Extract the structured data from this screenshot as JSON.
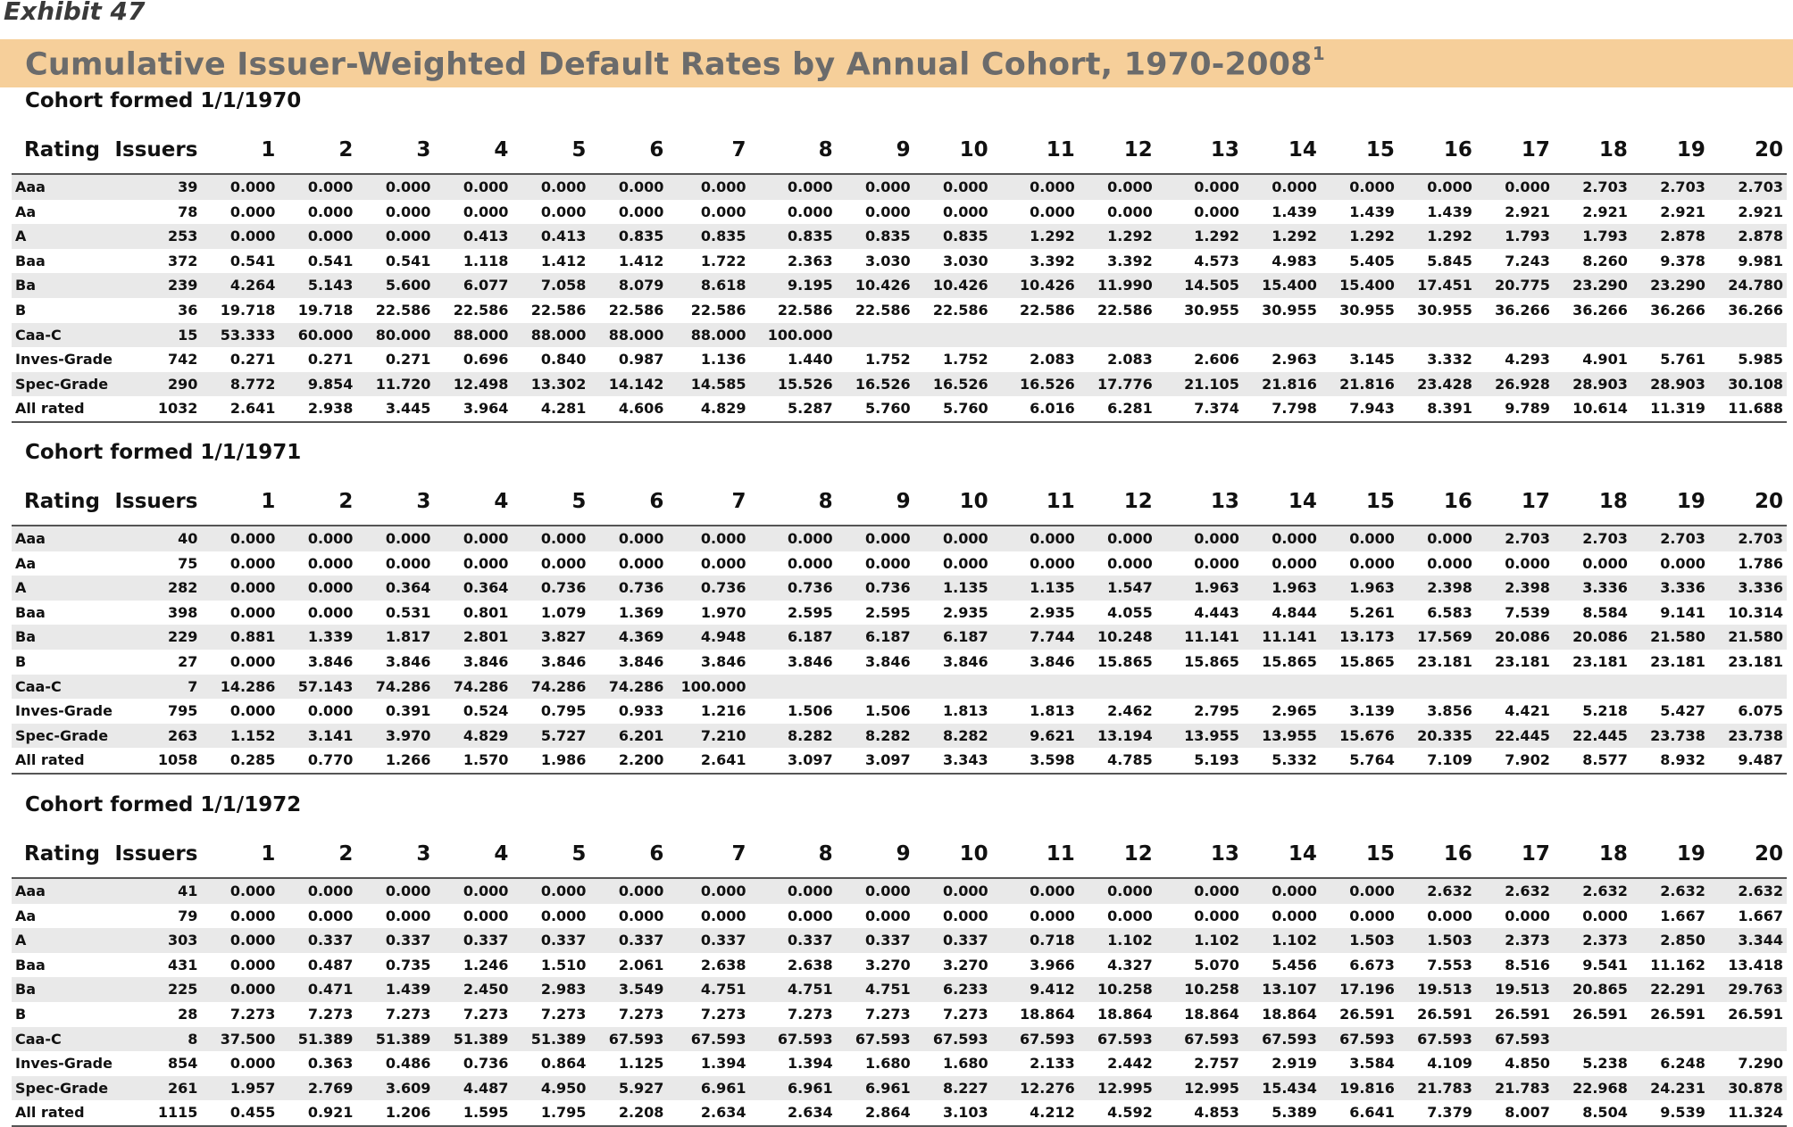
{
  "exhibit_label": "Exhibit 47",
  "title": "Cumulative Issuer-Weighted Default Rates by Annual Cohort, 1970-2008",
  "title_footnote": "1",
  "columns": [
    "Rating",
    "Issuers",
    "1",
    "2",
    "3",
    "4",
    "5",
    "6",
    "7",
    "8",
    "9",
    "10",
    "11",
    "12",
    "13",
    "14",
    "15",
    "16",
    "17",
    "18",
    "19",
    "20"
  ],
  "cohorts": [
    {
      "title": "Cohort formed 1/1/1970",
      "rows": [
        [
          "Aaa",
          "39",
          "0.000",
          "0.000",
          "0.000",
          "0.000",
          "0.000",
          "0.000",
          "0.000",
          "0.000",
          "0.000",
          "0.000",
          "0.000",
          "0.000",
          "0.000",
          "0.000",
          "0.000",
          "0.000",
          "0.000",
          "2.703",
          "2.703",
          "2.703"
        ],
        [
          "Aa",
          "78",
          "0.000",
          "0.000",
          "0.000",
          "0.000",
          "0.000",
          "0.000",
          "0.000",
          "0.000",
          "0.000",
          "0.000",
          "0.000",
          "0.000",
          "0.000",
          "1.439",
          "1.439",
          "1.439",
          "2.921",
          "2.921",
          "2.921",
          "2.921"
        ],
        [
          "A",
          "253",
          "0.000",
          "0.000",
          "0.000",
          "0.413",
          "0.413",
          "0.835",
          "0.835",
          "0.835",
          "0.835",
          "0.835",
          "1.292",
          "1.292",
          "1.292",
          "1.292",
          "1.292",
          "1.292",
          "1.793",
          "1.793",
          "2.878",
          "2.878"
        ],
        [
          "Baa",
          "372",
          "0.541",
          "0.541",
          "0.541",
          "1.118",
          "1.412",
          "1.412",
          "1.722",
          "2.363",
          "3.030",
          "3.030",
          "3.392",
          "3.392",
          "4.573",
          "4.983",
          "5.405",
          "5.845",
          "7.243",
          "8.260",
          "9.378",
          "9.981"
        ],
        [
          "Ba",
          "239",
          "4.264",
          "5.143",
          "5.600",
          "6.077",
          "7.058",
          "8.079",
          "8.618",
          "9.195",
          "10.426",
          "10.426",
          "10.426",
          "11.990",
          "14.505",
          "15.400",
          "15.400",
          "17.451",
          "20.775",
          "23.290",
          "23.290",
          "24.780"
        ],
        [
          "B",
          "36",
          "19.718",
          "19.718",
          "22.586",
          "22.586",
          "22.586",
          "22.586",
          "22.586",
          "22.586",
          "22.586",
          "22.586",
          "22.586",
          "22.586",
          "30.955",
          "30.955",
          "30.955",
          "30.955",
          "36.266",
          "36.266",
          "36.266",
          "36.266"
        ],
        [
          "Caa-C",
          "15",
          "53.333",
          "60.000",
          "80.000",
          "88.000",
          "88.000",
          "88.000",
          "88.000",
          "100.000",
          "",
          "",
          "",
          "",
          "",
          "",
          "",
          "",
          "",
          "",
          "",
          ""
        ],
        [
          "Inves-Grade",
          "742",
          "0.271",
          "0.271",
          "0.271",
          "0.696",
          "0.840",
          "0.987",
          "1.136",
          "1.440",
          "1.752",
          "1.752",
          "2.083",
          "2.083",
          "2.606",
          "2.963",
          "3.145",
          "3.332",
          "4.293",
          "4.901",
          "5.761",
          "5.985"
        ],
        [
          "Spec-Grade",
          "290",
          "8.772",
          "9.854",
          "11.720",
          "12.498",
          "13.302",
          "14.142",
          "14.585",
          "15.526",
          "16.526",
          "16.526",
          "16.526",
          "17.776",
          "21.105",
          "21.816",
          "21.816",
          "23.428",
          "26.928",
          "28.903",
          "28.903",
          "30.108"
        ],
        [
          "All rated",
          "1032",
          "2.641",
          "2.938",
          "3.445",
          "3.964",
          "4.281",
          "4.606",
          "4.829",
          "5.287",
          "5.760",
          "5.760",
          "6.016",
          "6.281",
          "7.374",
          "7.798",
          "7.943",
          "8.391",
          "9.789",
          "10.614",
          "11.319",
          "11.688"
        ]
      ]
    },
    {
      "title": "Cohort formed 1/1/1971",
      "rows": [
        [
          "Aaa",
          "40",
          "0.000",
          "0.000",
          "0.000",
          "0.000",
          "0.000",
          "0.000",
          "0.000",
          "0.000",
          "0.000",
          "0.000",
          "0.000",
          "0.000",
          "0.000",
          "0.000",
          "0.000",
          "0.000",
          "2.703",
          "2.703",
          "2.703",
          "2.703"
        ],
        [
          "Aa",
          "75",
          "0.000",
          "0.000",
          "0.000",
          "0.000",
          "0.000",
          "0.000",
          "0.000",
          "0.000",
          "0.000",
          "0.000",
          "0.000",
          "0.000",
          "0.000",
          "0.000",
          "0.000",
          "0.000",
          "0.000",
          "0.000",
          "0.000",
          "1.786"
        ],
        [
          "A",
          "282",
          "0.000",
          "0.000",
          "0.364",
          "0.364",
          "0.736",
          "0.736",
          "0.736",
          "0.736",
          "0.736",
          "1.135",
          "1.135",
          "1.547",
          "1.963",
          "1.963",
          "1.963",
          "2.398",
          "2.398",
          "3.336",
          "3.336",
          "3.336"
        ],
        [
          "Baa",
          "398",
          "0.000",
          "0.000",
          "0.531",
          "0.801",
          "1.079",
          "1.369",
          "1.970",
          "2.595",
          "2.595",
          "2.935",
          "2.935",
          "4.055",
          "4.443",
          "4.844",
          "5.261",
          "6.583",
          "7.539",
          "8.584",
          "9.141",
          "10.314"
        ],
        [
          "Ba",
          "229",
          "0.881",
          "1.339",
          "1.817",
          "2.801",
          "3.827",
          "4.369",
          "4.948",
          "6.187",
          "6.187",
          "6.187",
          "7.744",
          "10.248",
          "11.141",
          "11.141",
          "13.173",
          "17.569",
          "20.086",
          "20.086",
          "21.580",
          "21.580"
        ],
        [
          "B",
          "27",
          "0.000",
          "3.846",
          "3.846",
          "3.846",
          "3.846",
          "3.846",
          "3.846",
          "3.846",
          "3.846",
          "3.846",
          "3.846",
          "15.865",
          "15.865",
          "15.865",
          "15.865",
          "23.181",
          "23.181",
          "23.181",
          "23.181",
          "23.181"
        ],
        [
          "Caa-C",
          "7",
          "14.286",
          "57.143",
          "74.286",
          "74.286",
          "74.286",
          "74.286",
          "100.000",
          "",
          "",
          "",
          "",
          "",
          "",
          "",
          "",
          "",
          "",
          "",
          "",
          ""
        ],
        [
          "Inves-Grade",
          "795",
          "0.000",
          "0.000",
          "0.391",
          "0.524",
          "0.795",
          "0.933",
          "1.216",
          "1.506",
          "1.506",
          "1.813",
          "1.813",
          "2.462",
          "2.795",
          "2.965",
          "3.139",
          "3.856",
          "4.421",
          "5.218",
          "5.427",
          "6.075"
        ],
        [
          "Spec-Grade",
          "263",
          "1.152",
          "3.141",
          "3.970",
          "4.829",
          "5.727",
          "6.201",
          "7.210",
          "8.282",
          "8.282",
          "8.282",
          "9.621",
          "13.194",
          "13.955",
          "13.955",
          "15.676",
          "20.335",
          "22.445",
          "22.445",
          "23.738",
          "23.738"
        ],
        [
          "All rated",
          "1058",
          "0.285",
          "0.770",
          "1.266",
          "1.570",
          "1.986",
          "2.200",
          "2.641",
          "3.097",
          "3.097",
          "3.343",
          "3.598",
          "4.785",
          "5.193",
          "5.332",
          "5.764",
          "7.109",
          "7.902",
          "8.577",
          "8.932",
          "9.487"
        ]
      ]
    },
    {
      "title": "Cohort formed 1/1/1972",
      "rows": [
        [
          "Aaa",
          "41",
          "0.000",
          "0.000",
          "0.000",
          "0.000",
          "0.000",
          "0.000",
          "0.000",
          "0.000",
          "0.000",
          "0.000",
          "0.000",
          "0.000",
          "0.000",
          "0.000",
          "0.000",
          "2.632",
          "2.632",
          "2.632",
          "2.632",
          "2.632"
        ],
        [
          "Aa",
          "79",
          "0.000",
          "0.000",
          "0.000",
          "0.000",
          "0.000",
          "0.000",
          "0.000",
          "0.000",
          "0.000",
          "0.000",
          "0.000",
          "0.000",
          "0.000",
          "0.000",
          "0.000",
          "0.000",
          "0.000",
          "0.000",
          "1.667",
          "1.667"
        ],
        [
          "A",
          "303",
          "0.000",
          "0.337",
          "0.337",
          "0.337",
          "0.337",
          "0.337",
          "0.337",
          "0.337",
          "0.337",
          "0.337",
          "0.718",
          "1.102",
          "1.102",
          "1.102",
          "1.503",
          "1.503",
          "2.373",
          "2.373",
          "2.850",
          "3.344"
        ],
        [
          "Baa",
          "431",
          "0.000",
          "0.487",
          "0.735",
          "1.246",
          "1.510",
          "2.061",
          "2.638",
          "2.638",
          "3.270",
          "3.270",
          "3.966",
          "4.327",
          "5.070",
          "5.456",
          "6.673",
          "7.553",
          "8.516",
          "9.541",
          "11.162",
          "13.418"
        ],
        [
          "Ba",
          "225",
          "0.000",
          "0.471",
          "1.439",
          "2.450",
          "2.983",
          "3.549",
          "4.751",
          "4.751",
          "4.751",
          "6.233",
          "9.412",
          "10.258",
          "10.258",
          "13.107",
          "17.196",
          "19.513",
          "19.513",
          "20.865",
          "22.291",
          "29.763"
        ],
        [
          "B",
          "28",
          "7.273",
          "7.273",
          "7.273",
          "7.273",
          "7.273",
          "7.273",
          "7.273",
          "7.273",
          "7.273",
          "7.273",
          "18.864",
          "18.864",
          "18.864",
          "18.864",
          "26.591",
          "26.591",
          "26.591",
          "26.591",
          "26.591",
          "26.591"
        ],
        [
          "Caa-C",
          "8",
          "37.500",
          "51.389",
          "51.389",
          "51.389",
          "51.389",
          "67.593",
          "67.593",
          "67.593",
          "67.593",
          "67.593",
          "67.593",
          "67.593",
          "67.593",
          "67.593",
          "67.593",
          "67.593",
          "67.593",
          "",
          "",
          ""
        ],
        [
          "Inves-Grade",
          "854",
          "0.000",
          "0.363",
          "0.486",
          "0.736",
          "0.864",
          "1.125",
          "1.394",
          "1.394",
          "1.680",
          "1.680",
          "2.133",
          "2.442",
          "2.757",
          "2.919",
          "3.584",
          "4.109",
          "4.850",
          "5.238",
          "6.248",
          "7.290"
        ],
        [
          "Spec-Grade",
          "261",
          "1.957",
          "2.769",
          "3.609",
          "4.487",
          "4.950",
          "5.927",
          "6.961",
          "6.961",
          "6.961",
          "8.227",
          "12.276",
          "12.995",
          "12.995",
          "15.434",
          "19.816",
          "21.783",
          "21.783",
          "22.968",
          "24.231",
          "30.878"
        ],
        [
          "All rated",
          "1115",
          "0.455",
          "0.921",
          "1.206",
          "1.595",
          "1.795",
          "2.208",
          "2.634",
          "2.634",
          "2.864",
          "3.103",
          "4.212",
          "4.592",
          "4.853",
          "5.389",
          "6.641",
          "7.379",
          "8.007",
          "8.504",
          "9.539",
          "11.324"
        ]
      ]
    }
  ]
}
